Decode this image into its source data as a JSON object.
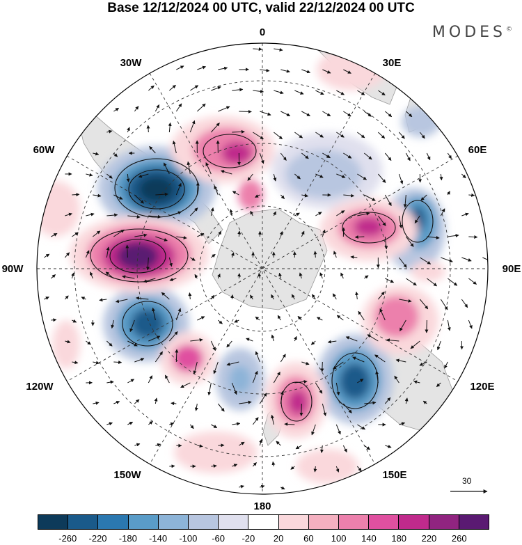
{
  "title": "Base 12/12/2024 00 UTC, valid 22/12/2024 00 UTC",
  "brand": "MODES",
  "brand_mark": "©",
  "longitude_labels": {
    "lon_0": "0",
    "lon_30e": "30E",
    "lon_60e": "60E",
    "lon_90e": "90E",
    "lon_120e": "120E",
    "lon_150e": "150E",
    "lon_180": "180",
    "lon_150w": "150W",
    "lon_120w": "120W",
    "lon_90w": "90W",
    "lon_60w": "60W",
    "lon_30w": "30W"
  },
  "reference_vector": {
    "label": "30"
  },
  "colorbar": {
    "ticks": [
      "-260",
      "-220",
      "-180",
      "-140",
      "-100",
      "-60",
      "-20",
      "20",
      "60",
      "100",
      "140",
      "180",
      "220",
      "260"
    ],
    "colors": [
      "#0d3a5a",
      "#1a5a8a",
      "#2b78b0",
      "#5a9cc8",
      "#8db4d8",
      "#b8c6e0",
      "#e0e0ee",
      "#ffffff",
      "#fad8dc",
      "#f4b0c0",
      "#ec80ac",
      "#e050a0",
      "#c02a8c",
      "#902480",
      "#5a1a72"
    ]
  },
  "map_colors": {
    "ocean": "#ffffff",
    "land": "#e6e6e6",
    "grid": "#444444"
  }
}
